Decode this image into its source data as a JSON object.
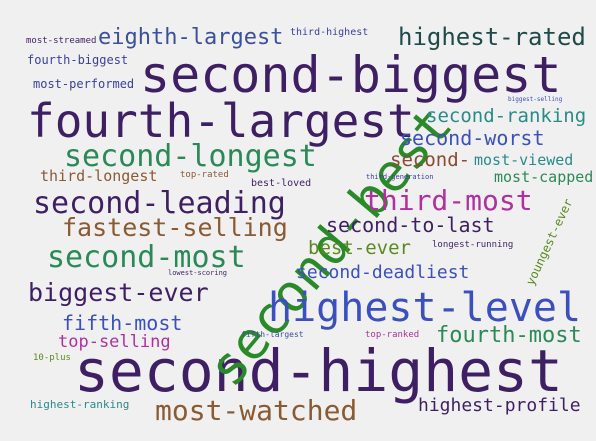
{
  "words": [
    {
      "text": "second-highest",
      "color": "#3f1f63"
    },
    {
      "text": "second-biggest",
      "color": "#3f1f63"
    },
    {
      "text": "second-best",
      "color": "#2a8a2a"
    },
    {
      "text": "fourth-largest",
      "color": "#3f1f63"
    },
    {
      "text": "highest-level",
      "color": "#3b4fbf"
    },
    {
      "text": "second-longest",
      "color": "#2a8a57"
    },
    {
      "text": "second-leading",
      "color": "#3f1f63"
    },
    {
      "text": "most-watched",
      "color": "#8a5a33"
    },
    {
      "text": "highest-rated",
      "color": "#1f4a4a"
    },
    {
      "text": "eighth-largest",
      "color": "#3b4f9f"
    },
    {
      "text": "second-most",
      "color": "#2a8a57"
    },
    {
      "text": "fastest-selling",
      "color": "#8a5a33"
    },
    {
      "text": "biggest-ever",
      "color": "#3f1f63"
    },
    {
      "text": "third-most",
      "color": "#b0309f"
    },
    {
      "text": "second-to-last",
      "color": "#3f1f63"
    },
    {
      "text": "fourth-most",
      "color": "#2a8a57"
    },
    {
      "text": "second-ranking",
      "color": "#2a8a8a"
    },
    {
      "text": "second-worst",
      "color": "#3b4fbf"
    },
    {
      "text": "second-",
      "color": "#8a4a33"
    },
    {
      "text": "most-viewed",
      "color": "#2a8a8a"
    },
    {
      "text": "second-deadliest",
      "color": "#3b4fbf"
    },
    {
      "text": "best-ever",
      "color": "#5a8a1f"
    },
    {
      "text": "fifth-most",
      "color": "#3b4fbf"
    },
    {
      "text": "highest-profile",
      "color": "#3f1f63"
    },
    {
      "text": "top-selling",
      "color": "#b0309f"
    },
    {
      "text": "third-longest",
      "color": "#8a5a33"
    },
    {
      "text": "most-capped",
      "color": "#2a8a57"
    },
    {
      "text": "youngest-ever",
      "color": "#5a8a1f"
    },
    {
      "text": "fourth-biggest",
      "color": "#3b3f9f"
    },
    {
      "text": "most-performed",
      "color": "#3b3f9f"
    },
    {
      "text": "most-streamed",
      "color": "#3f1f63"
    },
    {
      "text": "third-highest",
      "color": "#3b3f9f"
    },
    {
      "text": "highest-ranking",
      "color": "#2a8a8a"
    },
    {
      "text": "top-rated",
      "color": "#8a5a33"
    },
    {
      "text": "best-loved",
      "color": "#3f1f63"
    },
    {
      "text": "third-generation",
      "color": "#3b3f9f"
    },
    {
      "text": "longest-running",
      "color": "#3f1f63"
    },
    {
      "text": "lowest-scoring",
      "color": "#3f1f63"
    },
    {
      "text": "fifth-largest",
      "color": "#3b4f9f"
    },
    {
      "text": "top-ranked",
      "color": "#b0309f"
    },
    {
      "text": "10-plus",
      "color": "#5a8a1f"
    },
    {
      "text": "biggest-selling",
      "color": "#3b4fbf"
    }
  ]
}
